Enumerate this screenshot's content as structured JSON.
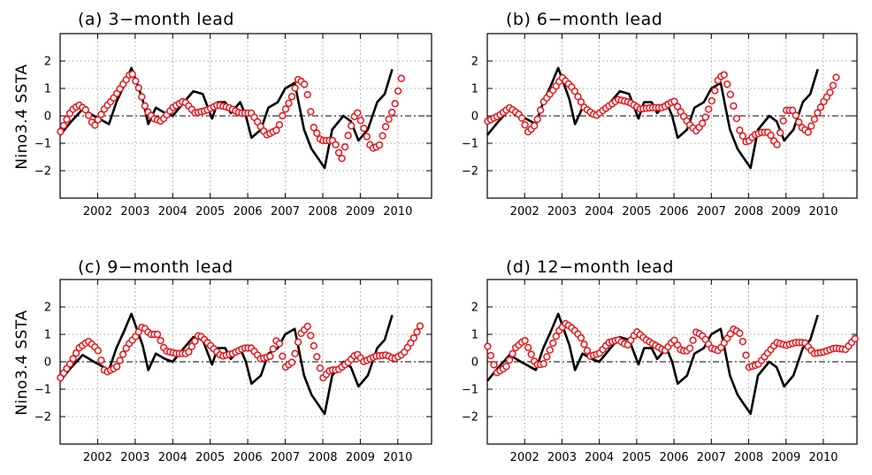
{
  "ylabel": "Nino3.4  SSTA",
  "chart_data": [
    {
      "type": "line",
      "title": "(a) 3−month lead",
      "xlim": [
        2001.0,
        2010.9
      ],
      "ylim": [
        -3,
        3
      ],
      "xticks": [
        2002,
        2003,
        2004,
        2005,
        2006,
        2007,
        2008,
        2009,
        2010
      ],
      "xtick_labels": [
        "2002",
        "2003",
        "2004",
        "2005",
        "2006",
        "2007",
        "2008",
        "2009",
        "2010"
      ],
      "yticks": [
        -2,
        -1,
        0,
        1,
        2
      ],
      "ytick_labels": [
        "−2",
        "−1",
        "0",
        "1",
        "2"
      ],
      "grid": true,
      "observed": {
        "x": [
          2001.0,
          2001.3,
          2001.6,
          2001.9,
          2002.3,
          2002.5,
          2002.7,
          2002.9,
          2003.2,
          2003.35,
          2003.55,
          2003.8,
          2004.0,
          2004.3,
          2004.55,
          2004.8,
          2005.05,
          2005.2,
          2005.4,
          2005.55,
          2005.8,
          2005.95,
          2006.1,
          2006.35,
          2006.55,
          2006.8,
          2007.0,
          2007.25,
          2007.5,
          2007.7,
          2007.85,
          2008.05,
          2008.25,
          2008.55,
          2008.75,
          2008.95,
          2009.2,
          2009.45,
          2009.65,
          2009.85
        ],
        "y": [
          -0.7,
          -0.2,
          0.25,
          0.0,
          -0.3,
          0.5,
          1.1,
          1.75,
          0.6,
          -0.3,
          0.3,
          0.1,
          0.0,
          0.5,
          0.9,
          0.8,
          -0.1,
          0.5,
          0.5,
          0.1,
          0.5,
          0.0,
          -0.8,
          -0.5,
          0.3,
          0.5,
          1.0,
          1.2,
          -0.5,
          -1.2,
          -1.5,
          -1.9,
          -0.5,
          0.0,
          -0.2,
          -0.9,
          -0.5,
          0.5,
          0.8,
          1.7
        ]
      },
      "forecast": {
        "x": [
          2001.0,
          2001.3,
          2001.5,
          2001.7,
          2001.9,
          2002.2,
          2002.4,
          2002.7,
          2002.9,
          2003.1,
          2003.3,
          2003.5,
          2003.7,
          2004.0,
          2004.3,
          2004.6,
          2004.9,
          2005.2,
          2005.5,
          2005.8,
          2006.1,
          2006.3,
          2006.5,
          2006.8,
          2006.95,
          2007.15,
          2007.35,
          2007.55,
          2007.75,
          2007.95,
          2008.15,
          2008.3,
          2008.5,
          2008.7,
          2008.9,
          2009.05,
          2009.3,
          2009.5,
          2009.7,
          2009.9,
          2010.1
        ],
        "y": [
          -0.6,
          0.2,
          0.4,
          0.2,
          -0.4,
          0.3,
          0.6,
          1.2,
          1.6,
          1.0,
          0.2,
          -0.1,
          -0.2,
          0.3,
          0.55,
          0.1,
          0.2,
          0.4,
          0.3,
          0.1,
          0.1,
          -0.3,
          -0.7,
          -0.5,
          0.1,
          0.6,
          1.35,
          1.1,
          -0.4,
          -0.9,
          -0.9,
          -0.9,
          -1.6,
          -0.6,
          0.2,
          -0.3,
          -1.2,
          -1.1,
          -0.3,
          0.3,
          1.4
        ]
      }
    },
    {
      "type": "line",
      "title": "(b) 6−month lead",
      "xlim": [
        2001.0,
        2010.9
      ],
      "ylim": [
        -3,
        3
      ],
      "xticks": [
        2002,
        2003,
        2004,
        2005,
        2006,
        2007,
        2008,
        2009,
        2010
      ],
      "xtick_labels": [
        "2002",
        "2003",
        "2004",
        "2005",
        "2006",
        "2007",
        "2008",
        "2009",
        "2010"
      ],
      "yticks": [
        -2,
        -1,
        0,
        1,
        2
      ],
      "ytick_labels": [
        "−2",
        "−1",
        "0",
        "1",
        "2"
      ],
      "grid": true,
      "observed": {
        "x": [
          2001.0,
          2001.3,
          2001.6,
          2001.9,
          2002.3,
          2002.5,
          2002.7,
          2002.9,
          2003.2,
          2003.35,
          2003.55,
          2003.8,
          2004.0,
          2004.3,
          2004.55,
          2004.8,
          2005.05,
          2005.2,
          2005.4,
          2005.55,
          2005.8,
          2005.95,
          2006.1,
          2006.35,
          2006.55,
          2006.8,
          2007.0,
          2007.25,
          2007.5,
          2007.7,
          2007.85,
          2008.05,
          2008.25,
          2008.55,
          2008.75,
          2008.95,
          2009.2,
          2009.45,
          2009.65,
          2009.85
        ],
        "y": [
          -0.7,
          -0.2,
          0.25,
          0.0,
          -0.3,
          0.5,
          1.1,
          1.75,
          0.6,
          -0.3,
          0.3,
          0.1,
          0.0,
          0.5,
          0.9,
          0.8,
          -0.1,
          0.5,
          0.5,
          0.1,
          0.5,
          0.0,
          -0.8,
          -0.5,
          0.3,
          0.5,
          1.0,
          1.2,
          -0.5,
          -1.2,
          -1.5,
          -1.9,
          -0.5,
          0.0,
          -0.2,
          -0.9,
          -0.5,
          0.5,
          0.8,
          1.7
        ]
      },
      "forecast": {
        "x": [
          2001.0,
          2001.3,
          2001.6,
          2001.9,
          2002.1,
          2002.3,
          2002.5,
          2002.8,
          2003.0,
          2003.3,
          2003.6,
          2003.9,
          2004.2,
          2004.5,
          2004.8,
          2005.1,
          2005.4,
          2005.7,
          2006.0,
          2006.2,
          2006.4,
          2006.6,
          2006.8,
          2007.0,
          2007.2,
          2007.35,
          2007.55,
          2007.75,
          2007.95,
          2008.15,
          2008.35,
          2008.55,
          2008.75,
          2009.0,
          2009.2,
          2009.4,
          2009.6,
          2009.8,
          2010.0,
          2010.2,
          2010.4
        ],
        "y": [
          -0.2,
          0.0,
          0.3,
          0.0,
          -0.6,
          -0.3,
          0.5,
          1.0,
          1.4,
          1.0,
          0.3,
          0.0,
          0.3,
          0.6,
          0.5,
          0.25,
          0.3,
          0.3,
          0.55,
          0.1,
          -0.3,
          -0.55,
          -0.2,
          0.5,
          1.4,
          1.5,
          0.6,
          -0.5,
          -1.0,
          -0.7,
          -0.6,
          -0.6,
          -1.1,
          0.2,
          0.2,
          -0.4,
          -0.6,
          0.0,
          0.5,
          0.9,
          1.6
        ]
      }
    },
    {
      "type": "line",
      "title": "(c) 9−month lead",
      "xlim": [
        2001.0,
        2010.9
      ],
      "ylim": [
        -3,
        3
      ],
      "xticks": [
        2002,
        2003,
        2004,
        2005,
        2006,
        2007,
        2008,
        2009,
        2010
      ],
      "xtick_labels": [
        "2002",
        "2003",
        "2004",
        "2005",
        "2006",
        "2007",
        "2008",
        "2009",
        "2010"
      ],
      "yticks": [
        -2,
        -1,
        0,
        1,
        2
      ],
      "ytick_labels": [
        "−2",
        "−1",
        "0",
        "1",
        "2"
      ],
      "grid": true,
      "observed": {
        "x": [
          2001.0,
          2001.3,
          2001.6,
          2001.9,
          2002.3,
          2002.5,
          2002.7,
          2002.9,
          2003.2,
          2003.35,
          2003.55,
          2003.8,
          2004.0,
          2004.3,
          2004.55,
          2004.8,
          2005.05,
          2005.2,
          2005.4,
          2005.55,
          2005.8,
          2005.95,
          2006.1,
          2006.35,
          2006.55,
          2006.8,
          2007.0,
          2007.25,
          2007.5,
          2007.7,
          2007.85,
          2008.05,
          2008.25,
          2008.55,
          2008.75,
          2008.95,
          2009.2,
          2009.45,
          2009.65,
          2009.85
        ],
        "y": [
          -0.7,
          -0.2,
          0.25,
          0.0,
          -0.3,
          0.5,
          1.1,
          1.75,
          0.6,
          -0.3,
          0.3,
          0.1,
          0.0,
          0.5,
          0.9,
          0.8,
          -0.1,
          0.5,
          0.5,
          0.1,
          0.5,
          0.0,
          -0.8,
          -0.5,
          0.3,
          0.5,
          1.0,
          1.2,
          -0.5,
          -1.2,
          -1.5,
          -1.9,
          -0.5,
          0.0,
          -0.2,
          -0.9,
          -0.5,
          0.5,
          0.8,
          1.7
        ]
      },
      "forecast": {
        "x": [
          2001.0,
          2001.3,
          2001.5,
          2001.75,
          2002.0,
          2002.2,
          2002.5,
          2002.8,
          2003.0,
          2003.2,
          2003.4,
          2003.6,
          2003.8,
          2004.1,
          2004.4,
          2004.7,
          2005.0,
          2005.3,
          2005.6,
          2005.9,
          2006.1,
          2006.35,
          2006.6,
          2006.8,
          2007.0,
          2007.2,
          2007.4,
          2007.6,
          2007.8,
          2008.0,
          2008.2,
          2008.4,
          2008.7,
          2008.9,
          2009.1,
          2009.4,
          2009.7,
          2009.9,
          2010.15,
          2010.4,
          2010.65
        ],
        "y": [
          -0.6,
          0.0,
          0.5,
          0.75,
          0.45,
          -0.4,
          -0.2,
          0.6,
          0.9,
          1.3,
          1.0,
          1.0,
          0.4,
          0.3,
          0.3,
          1.0,
          0.6,
          0.2,
          0.3,
          0.5,
          0.5,
          0.1,
          0.2,
          0.9,
          -0.2,
          0.0,
          1.0,
          1.3,
          0.4,
          -0.6,
          -0.3,
          -0.3,
          0.0,
          0.3,
          0.0,
          0.2,
          0.25,
          0.1,
          0.3,
          0.8,
          1.45
        ]
      }
    },
    {
      "type": "line",
      "title": "(d) 12−month lead",
      "xlim": [
        2001.0,
        2010.9
      ],
      "ylim": [
        -3,
        3
      ],
      "xticks": [
        2002,
        2003,
        2004,
        2005,
        2006,
        2007,
        2008,
        2009,
        2010
      ],
      "xtick_labels": [
        "2002",
        "2003",
        "2004",
        "2005",
        "2006",
        "2007",
        "2008",
        "2009",
        "2010"
      ],
      "yticks": [
        -2,
        -1,
        0,
        1,
        2
      ],
      "ytick_labels": [
        "−2",
        "−1",
        "0",
        "1",
        "2"
      ],
      "grid": true,
      "observed": {
        "x": [
          2001.0,
          2001.3,
          2001.6,
          2001.9,
          2002.3,
          2002.5,
          2002.7,
          2002.9,
          2003.2,
          2003.35,
          2003.55,
          2003.8,
          2004.0,
          2004.3,
          2004.55,
          2004.8,
          2005.05,
          2005.2,
          2005.4,
          2005.55,
          2005.8,
          2005.95,
          2006.1,
          2006.35,
          2006.55,
          2006.8,
          2007.0,
          2007.25,
          2007.5,
          2007.7,
          2007.85,
          2008.05,
          2008.25,
          2008.55,
          2008.75,
          2008.95,
          2009.2,
          2009.45,
          2009.65,
          2009.85
        ],
        "y": [
          -0.7,
          -0.2,
          0.25,
          0.0,
          -0.3,
          0.5,
          1.1,
          1.75,
          0.6,
          -0.3,
          0.3,
          0.1,
          0.0,
          0.5,
          0.9,
          0.8,
          -0.1,
          0.5,
          0.5,
          0.1,
          0.5,
          0.0,
          -0.8,
          -0.5,
          0.3,
          0.5,
          1.0,
          1.2,
          -0.5,
          -1.2,
          -1.5,
          -1.9,
          -0.5,
          0.0,
          -0.2,
          -0.9,
          -0.5,
          0.5,
          0.8,
          1.7
        ]
      },
      "forecast": {
        "x": [
          2001.0,
          2001.25,
          2001.5,
          2001.75,
          2002.0,
          2002.3,
          2002.5,
          2002.7,
          2002.9,
          2003.1,
          2003.3,
          2003.5,
          2003.75,
          2004.0,
          2004.25,
          2004.5,
          2004.75,
          2005.0,
          2005.25,
          2005.5,
          2005.75,
          2006.0,
          2006.2,
          2006.4,
          2006.6,
          2006.8,
          2007.0,
          2007.2,
          2007.4,
          2007.6,
          2007.8,
          2008.0,
          2008.25,
          2008.5,
          2008.75,
          2009.0,
          2009.25,
          2009.5,
          2009.75,
          2010.0,
          2010.3,
          2010.6,
          2010.85
        ],
        "y": [
          0.6,
          -0.4,
          -0.2,
          0.5,
          0.8,
          -0.1,
          -0.1,
          0.5,
          1.1,
          1.4,
          1.2,
          0.9,
          0.2,
          0.3,
          0.7,
          0.8,
          0.6,
          1.1,
          0.8,
          0.6,
          0.4,
          0.8,
          0.4,
          0.4,
          1.1,
          0.9,
          0.5,
          0.4,
          0.8,
          1.2,
          1.0,
          -0.2,
          -0.1,
          0.3,
          0.7,
          0.6,
          0.7,
          0.7,
          0.3,
          0.35,
          0.5,
          0.45,
          0.85
        ]
      }
    }
  ]
}
